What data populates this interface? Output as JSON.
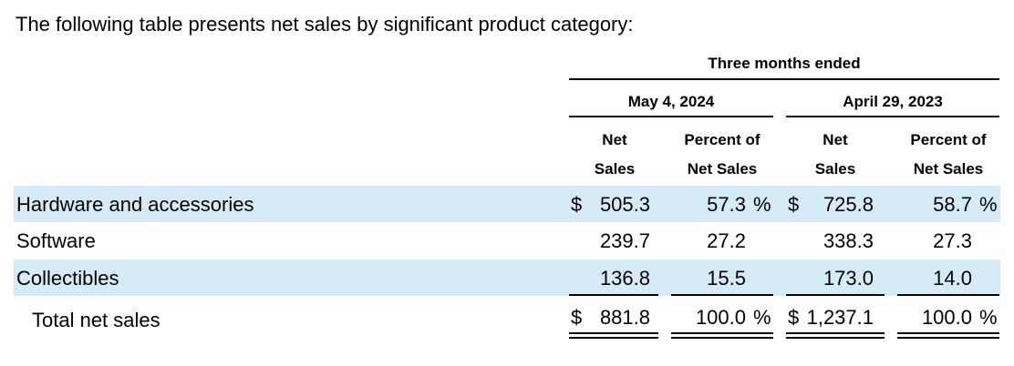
{
  "intro": "The following table presents net sales by significant product category:",
  "table": {
    "period_header": "Three months ended",
    "periods": [
      "May 4, 2024",
      "April 29, 2023"
    ],
    "col_headers": {
      "net_sales_l1": "Net",
      "net_sales_l2": "Sales",
      "pct_l1": "Percent of",
      "pct_l2": "Net Sales"
    },
    "rows": [
      {
        "label": "Hardware and accessories",
        "cur_sym": "$",
        "cur": "505.3",
        "cur_pct": "57.3",
        "cur_pct_sym": "%",
        "prev_sym": "$",
        "prev": "725.8",
        "prev_pct": "58.7",
        "prev_pct_sym": "%"
      },
      {
        "label": "Software",
        "cur_sym": "",
        "cur": "239.7",
        "cur_pct": "27.2",
        "cur_pct_sym": "",
        "prev_sym": "",
        "prev": "338.3",
        "prev_pct": "27.3",
        "prev_pct_sym": ""
      },
      {
        "label": "Collectibles",
        "cur_sym": "",
        "cur": "136.8",
        "cur_pct": "15.5",
        "cur_pct_sym": "",
        "prev_sym": "",
        "prev": "173.0",
        "prev_pct": "14.0",
        "prev_pct_sym": ""
      }
    ],
    "total": {
      "label": "Total net sales",
      "cur_sym": "$",
      "cur": "881.8",
      "cur_pct": "100.0",
      "cur_pct_sym": "%",
      "prev_sym": "$",
      "prev": "1,237.1",
      "prev_pct": "100.0",
      "prev_pct_sym": "%"
    }
  },
  "colors": {
    "band": "#d6ebf8",
    "text": "#000000"
  }
}
